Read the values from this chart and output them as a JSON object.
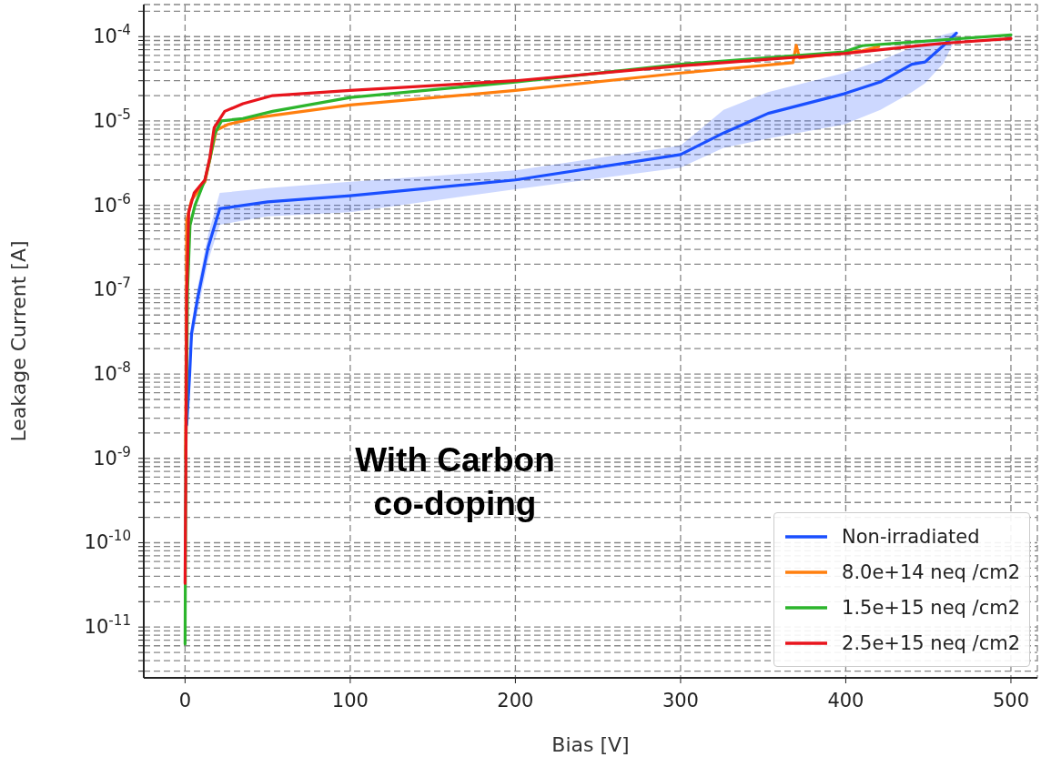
{
  "chart_data": {
    "type": "line",
    "xlabel": "Bias [V]",
    "ylabel": "Leakage Current [A]",
    "log": "y",
    "grid": true,
    "legend": "bottom right",
    "marker": "none",
    "line_style": "solid",
    "annotations": [
      "With Carbon co-doping"
    ],
    "xlim": [
      -25,
      516
    ],
    "xticks": [
      0,
      100,
      200,
      300,
      400,
      500
    ],
    "ylim": [
      2.5e-12,
      0.00024
    ],
    "yticks": [
      {
        "value": 3e-12,
        "label": null
      },
      {
        "value": 4e-12,
        "label": null
      },
      {
        "value": 5e-12,
        "label": null
      },
      {
        "value": 6e-12,
        "label": null
      },
      {
        "value": 7e-12,
        "label": null
      },
      {
        "value": 8e-12,
        "label": null
      },
      {
        "value": 9e-12,
        "label": null
      },
      {
        "value": 1e-11,
        "label": "10$^{-11}$"
      },
      {
        "value": 2e-11,
        "label": null
      },
      {
        "value": 3e-11,
        "label": null
      },
      {
        "value": 4e-11,
        "label": null
      },
      {
        "value": 5e-11,
        "label": null
      },
      {
        "value": 6e-11,
        "label": null
      },
      {
        "value": 7e-11,
        "label": null
      },
      {
        "value": 8e-11,
        "label": null
      },
      {
        "value": 9e-11,
        "label": null
      },
      {
        "value": 1e-10,
        "label": "10$^{-10}$"
      },
      {
        "value": 2e-10,
        "label": null
      },
      {
        "value": 3e-10,
        "label": null
      },
      {
        "value": 4e-10,
        "label": null
      },
      {
        "value": 5e-10,
        "label": null
      },
      {
        "value": 6e-10,
        "label": null
      },
      {
        "value": 7e-10,
        "label": null
      },
      {
        "value": 8e-10,
        "label": null
      },
      {
        "value": 9e-10,
        "label": null
      },
      {
        "value": 1e-09,
        "label": "10$^{-9}$"
      },
      {
        "value": 2e-09,
        "label": null
      },
      {
        "value": 3e-09,
        "label": null
      },
      {
        "value": 4e-09,
        "label": null
      },
      {
        "value": 5e-09,
        "label": null
      },
      {
        "value": 6e-09,
        "label": null
      },
      {
        "value": 7e-09,
        "label": null
      },
      {
        "value": 8e-09,
        "label": null
      },
      {
        "value": 9e-09,
        "label": null
      },
      {
        "value": 1e-08,
        "label": "10$^{-8}$"
      },
      {
        "value": 2e-08,
        "label": null
      },
      {
        "value": 3e-08,
        "label": null
      },
      {
        "value": 4e-08,
        "label": null
      },
      {
        "value": 5e-08,
        "label": null
      },
      {
        "value": 6e-08,
        "label": null
      },
      {
        "value": 7e-08,
        "label": null
      },
      {
        "value": 8e-08,
        "label": null
      },
      {
        "value": 9e-08,
        "label": null
      },
      {
        "value": 1e-07,
        "label": "10$^{-7}$"
      },
      {
        "value": 2e-07,
        "label": null
      },
      {
        "value": 3e-07,
        "label": null
      },
      {
        "value": 4e-07,
        "label": null
      },
      {
        "value": 5e-07,
        "label": null
      },
      {
        "value": 6e-07,
        "label": null
      },
      {
        "value": 7e-07,
        "label": null
      },
      {
        "value": 8e-07,
        "label": null
      },
      {
        "value": 9e-07,
        "label": null
      },
      {
        "value": 1e-06,
        "label": "10$^{-6}$"
      },
      {
        "value": 2e-06,
        "label": null
      },
      {
        "value": 3e-06,
        "label": null
      },
      {
        "value": 4e-06,
        "label": null
      },
      {
        "value": 5e-06,
        "label": null
      },
      {
        "value": 6e-06,
        "label": null
      },
      {
        "value": 7e-06,
        "label": null
      },
      {
        "value": 8e-06,
        "label": null
      },
      {
        "value": 9e-06,
        "label": null
      },
      {
        "value": 1e-05,
        "label": "10$^{-5}$"
      },
      {
        "value": 2e-05,
        "label": null
      },
      {
        "value": 3e-05,
        "label": null
      },
      {
        "value": 4e-05,
        "label": null
      },
      {
        "value": 5e-05,
        "label": null
      },
      {
        "value": 6e-05,
        "label": null
      },
      {
        "value": 7e-05,
        "label": null
      },
      {
        "value": 8e-05,
        "label": null
      },
      {
        "value": 9e-05,
        "label": null
      },
      {
        "value": 0.0001,
        "label": "10$^{-4}$"
      },
      {
        "value": 0.0002,
        "label": null
      }
    ],
    "series": [
      {
        "name": "Non-irradiated",
        "color": "#1a4fff",
        "x": [
          1,
          2.8,
          3.9,
          7.7,
          14,
          21,
          50,
          100,
          200,
          300,
          326,
          353,
          399,
          421,
          440,
          448,
          459,
          467
        ],
        "values": [
          2.5e-09,
          1e-08,
          3e-08,
          8.1e-08,
          3.2e-07,
          9.1e-07,
          1.1e-06,
          1.3e-06,
          2e-06,
          4e-06,
          7.2e-06,
          1.23e-05,
          2.1e-05,
          2.9e-05,
          4.7e-05,
          5e-05,
          7.8e-05,
          0.00011
        ],
        "lower": [
          null,
          null,
          2.2e-08,
          5.6e-08,
          2.2e-07,
          5.9e-07,
          7.4e-07,
          8.3e-07,
          1.55e-06,
          2.8e-06,
          4.8e-06,
          6.2e-06,
          9.1e-06,
          1.35e-05,
          2.2e-05,
          2.8e-05,
          4.8e-05,
          0.0001
        ],
        "upper": [
          null,
          null,
          4e-08,
          1.1e-07,
          4.5e-07,
          1.4e-06,
          1.6e-06,
          1.9e-06,
          2.6e-06,
          5.1e-06,
          1.35e-05,
          2.2e-05,
          3.7e-05,
          5.2e-05,
          7.4e-05,
          8.5e-05,
          0.000105,
          0.000115
        ]
      },
      {
        "name": "8.0e+14 neq /cm2",
        "color": "#ff7f0e",
        "x": [
          0.3,
          0.7,
          1,
          3.9,
          12,
          16,
          19,
          26,
          44,
          100,
          200,
          300,
          368,
          370,
          372,
          410,
          420
        ],
        "values": [
          1e-09,
          3.2e-08,
          6.6e-07,
          1.15e-06,
          1.9e-06,
          4.3e-06,
          7.8e-06,
          9.1e-06,
          1.1e-05,
          1.55e-05,
          2.3e-05,
          3.7e-05,
          4.9e-05,
          7.9e-05,
          5.6e-05,
          6.8e-05,
          7.6e-05
        ]
      },
      {
        "name": "1.5e+15 neq /cm2",
        "color": "#2cb52c",
        "x": [
          0,
          0.5,
          1.5,
          3,
          6,
          12,
          15,
          18,
          22,
          35,
          53,
          100,
          200,
          300,
          399,
          410,
          500
        ],
        "values": [
          6.3e-12,
          1e-09,
          1e-07,
          5.8e-07,
          1e-06,
          2e-06,
          3.5e-06,
          7.1e-06,
          1e-05,
          1.07e-05,
          1.3e-05,
          1.9e-05,
          2.9e-05,
          4.7e-05,
          6.6e-05,
          7.8e-05,
          0.000105
        ]
      },
      {
        "name": "2.5e+15 neq /cm2",
        "color": "#e8141c",
        "x": [
          0,
          0.5,
          1,
          2.2,
          5.5,
          12,
          15,
          17.6,
          24,
          35,
          53,
          100,
          200,
          300,
          399,
          458,
          500
        ],
        "values": [
          3.3e-11,
          1e-09,
          8.1e-08,
          8.3e-07,
          1.4e-06,
          2e-06,
          3.7e-06,
          8.3e-06,
          1.3e-05,
          1.6e-05,
          2e-05,
          2.3e-05,
          3e-05,
          4.5e-05,
          6.3e-05,
          8.3e-05,
          9.5e-05
        ]
      }
    ]
  }
}
